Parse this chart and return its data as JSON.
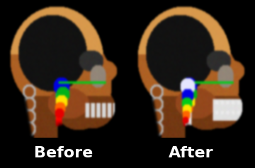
{
  "background_color": "#000000",
  "text_color": "#ffffff",
  "before_label": "Before",
  "after_label": "After",
  "label_fontsize": 16,
  "label_fontweight": "bold",
  "figsize": [
    3.6,
    2.38
  ],
  "dpi": 100
}
